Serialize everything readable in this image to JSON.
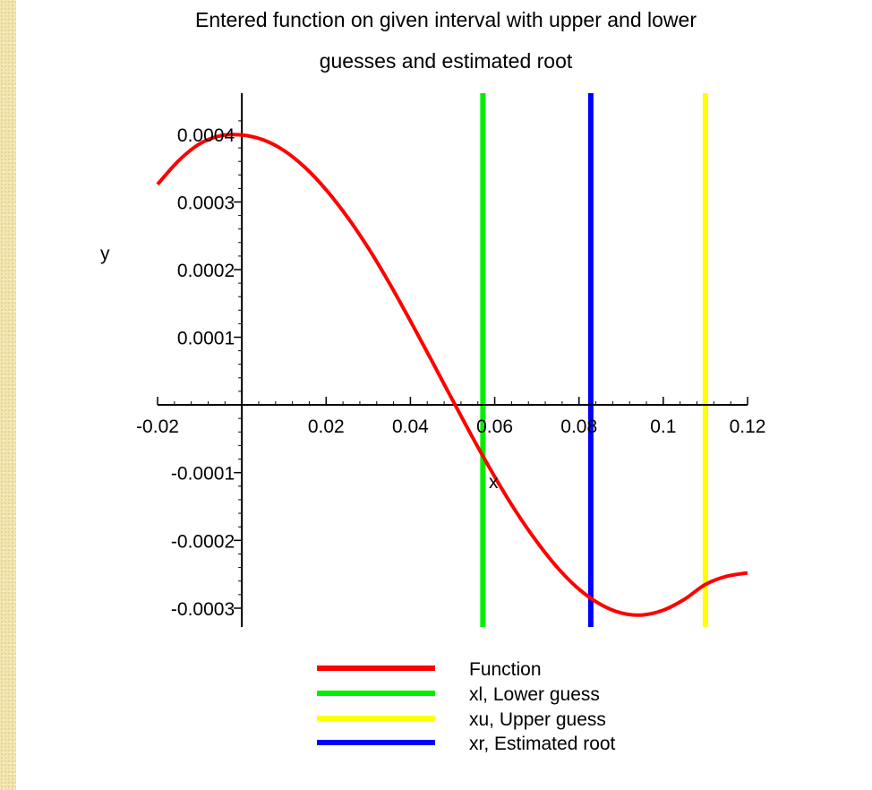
{
  "chart_data": {
    "type": "line",
    "title_lines": [
      "Entered function on given interval with upper and lower",
      "guesses and estimated root"
    ],
    "xlabel": "x",
    "ylabel": "y",
    "xlim": [
      -0.02,
      0.12
    ],
    "ylim": [
      -0.0003,
      0.0004
    ],
    "x_ticks": [
      -0.02,
      0.02,
      0.04,
      0.06,
      0.08,
      0.1,
      0.12
    ],
    "x_tick_labels": [
      "-0.02",
      "0.02",
      "0.04",
      "0.06",
      "0.08",
      "0.1",
      "0.12"
    ],
    "y_ticks": [
      0.0004,
      0.0003,
      0.0002,
      0.0001,
      -0.0001,
      -0.0002,
      -0.0003
    ],
    "y_tick_labels": [
      "0.0004",
      "0.0003",
      "0.0002",
      "0.0001",
      "-0.0001",
      "-0.0002",
      "-0.0003"
    ],
    "grid": false,
    "legend_position": "bottom",
    "function_curve": {
      "name": "Function",
      "color": "#ff0000",
      "x": [
        -0.02,
        -0.015,
        -0.01,
        -0.005,
        0,
        0.005,
        0.01,
        0.015,
        0.02,
        0.025,
        0.03,
        0.035,
        0.04,
        0.045,
        0.05,
        0.055,
        0.06,
        0.065,
        0.07,
        0.075,
        0.08,
        0.085,
        0.09,
        0.095,
        0.1,
        0.105,
        0.11,
        0.115,
        0.12
      ],
      "y": [
        0.000326,
        0.000361,
        0.000386,
        0.000398,
        0.000399,
        0.000392,
        0.000376,
        0.000351,
        0.000318,
        0.000278,
        0.000232,
        0.00018,
        0.000124,
        6.6e-05,
        7e-06,
        -5.1e-05,
        -0.000106,
        -0.000157,
        -0.000202,
        -0.000241,
        -0.000272,
        -0.000294,
        -0.000307,
        -0.00031,
        -0.000303,
        -0.000287,
        -0.000265,
        -0.000253,
        -0.000248
      ]
    },
    "vertical_lines": [
      {
        "name": "xl, Lower guess",
        "x": 0.0572,
        "color": "#00ee00"
      },
      {
        "name": "xr, Estimated root",
        "x": 0.0828,
        "color": "#0000ff"
      },
      {
        "name": "xu, Upper guess",
        "x": 0.11,
        "color": "#ffff00"
      }
    ],
    "legend": [
      {
        "label": "Function",
        "color": "#ff0000"
      },
      {
        "label": "xl, Lower guess",
        "color": "#00ee00"
      },
      {
        "label": "xu, Upper guess",
        "color": "#ffff00"
      },
      {
        "label": "xr, Estimated root",
        "color": "#0000ff"
      }
    ]
  }
}
